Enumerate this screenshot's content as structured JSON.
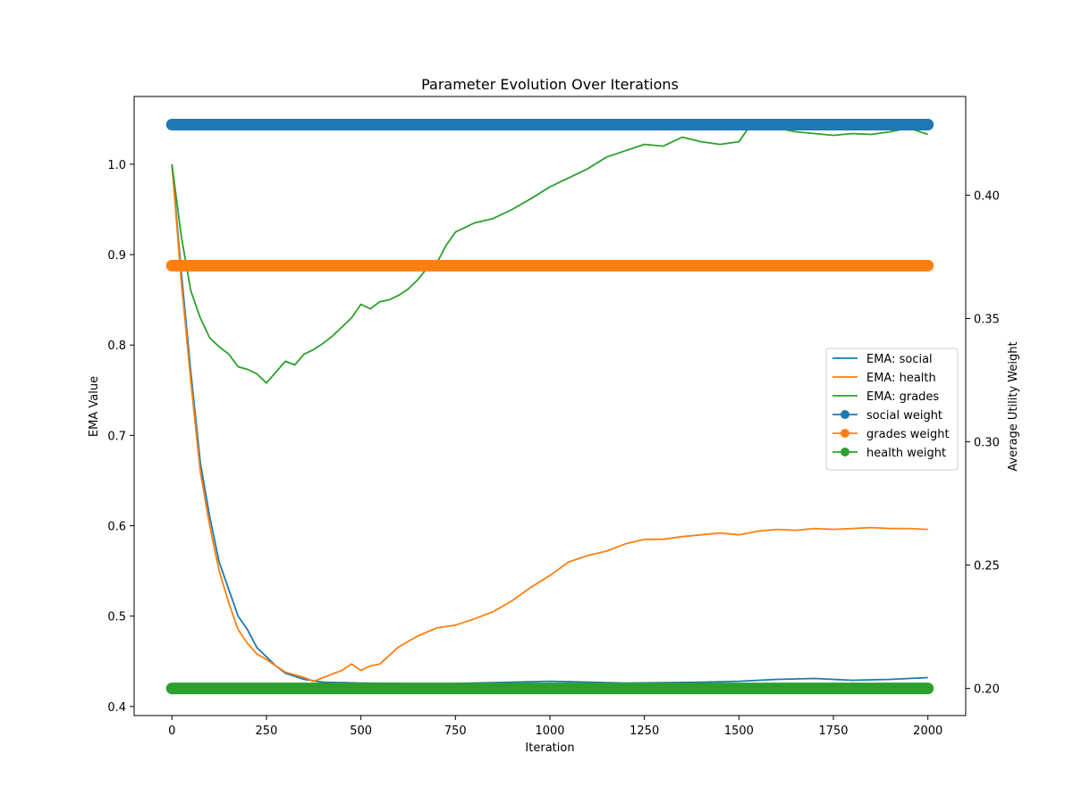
{
  "chart_data": {
    "type": "line",
    "title": "Parameter Evolution Over Iterations",
    "xlabel": "Iteration",
    "ylabel": "EMA Value",
    "y2label": "Average Utility Weight",
    "xlim": [
      -100,
      2100
    ],
    "ylim": [
      0.39,
      1.075
    ],
    "y2lim": [
      0.189,
      0.44
    ],
    "xticks": [
      0,
      250,
      500,
      750,
      1000,
      1250,
      1500,
      1750,
      2000
    ],
    "yticks": [
      0.4,
      0.5,
      0.6,
      0.7,
      0.8,
      0.9,
      1.0
    ],
    "y2ticks": [
      0.2,
      0.25,
      0.3,
      0.35,
      0.4
    ],
    "xtick_labels": [
      "0",
      "250",
      "500",
      "750",
      "1000",
      "1250",
      "1500",
      "1750",
      "2000"
    ],
    "ytick_labels": [
      "0.4",
      "0.5",
      "0.6",
      "0.7",
      "0.8",
      "0.9",
      "1.0"
    ],
    "y2tick_labels": [
      "0.20",
      "0.25",
      "0.30",
      "0.35",
      "0.40"
    ],
    "grid": false,
    "legend_position": "center-right",
    "series": [
      {
        "name": "EMA: social",
        "axis": "left",
        "style": "line",
        "color": "#1f77b4",
        "points": [
          [
            0,
            1.0
          ],
          [
            25,
            0.88
          ],
          [
            50,
            0.77
          ],
          [
            75,
            0.67
          ],
          [
            100,
            0.61
          ],
          [
            125,
            0.56
          ],
          [
            150,
            0.53
          ],
          [
            175,
            0.5
          ],
          [
            200,
            0.485
          ],
          [
            225,
            0.465
          ],
          [
            250,
            0.455
          ],
          [
            275,
            0.445
          ],
          [
            300,
            0.437
          ],
          [
            350,
            0.43
          ],
          [
            400,
            0.427
          ],
          [
            500,
            0.426
          ],
          [
            700,
            0.425
          ],
          [
            900,
            0.427
          ],
          [
            1000,
            0.428
          ],
          [
            1200,
            0.426
          ],
          [
            1400,
            0.427
          ],
          [
            1500,
            0.428
          ],
          [
            1600,
            0.43
          ],
          [
            1700,
            0.431
          ],
          [
            1800,
            0.429
          ],
          [
            1900,
            0.43
          ],
          [
            2000,
            0.432
          ]
        ]
      },
      {
        "name": "EMA: health",
        "axis": "left",
        "style": "line",
        "color": "#ff7f0e",
        "points": [
          [
            0,
            1.0
          ],
          [
            25,
            0.87
          ],
          [
            50,
            0.76
          ],
          [
            75,
            0.66
          ],
          [
            100,
            0.6
          ],
          [
            125,
            0.55
          ],
          [
            150,
            0.515
          ],
          [
            175,
            0.485
          ],
          [
            200,
            0.47
          ],
          [
            225,
            0.458
          ],
          [
            250,
            0.452
          ],
          [
            275,
            0.445
          ],
          [
            300,
            0.438
          ],
          [
            350,
            0.432
          ],
          [
            375,
            0.428
          ],
          [
            400,
            0.432
          ],
          [
            450,
            0.44
          ],
          [
            475,
            0.447
          ],
          [
            500,
            0.44
          ],
          [
            525,
            0.445
          ],
          [
            550,
            0.447
          ],
          [
            600,
            0.466
          ],
          [
            650,
            0.478
          ],
          [
            700,
            0.487
          ],
          [
            750,
            0.49
          ],
          [
            800,
            0.497
          ],
          [
            850,
            0.505
          ],
          [
            900,
            0.517
          ],
          [
            950,
            0.532
          ],
          [
            1000,
            0.545
          ],
          [
            1050,
            0.56
          ],
          [
            1100,
            0.567
          ],
          [
            1150,
            0.572
          ],
          [
            1200,
            0.58
          ],
          [
            1250,
            0.585
          ],
          [
            1300,
            0.585
          ],
          [
            1350,
            0.588
          ],
          [
            1400,
            0.59
          ],
          [
            1450,
            0.592
          ],
          [
            1500,
            0.59
          ],
          [
            1550,
            0.594
          ],
          [
            1600,
            0.596
          ],
          [
            1650,
            0.595
          ],
          [
            1700,
            0.597
          ],
          [
            1750,
            0.596
          ],
          [
            1800,
            0.597
          ],
          [
            1850,
            0.598
          ],
          [
            1900,
            0.597
          ],
          [
            1950,
            0.597
          ],
          [
            2000,
            0.596
          ]
        ]
      },
      {
        "name": "EMA: grades",
        "axis": "left",
        "style": "line",
        "color": "#2ca02c",
        "points": [
          [
            0,
            1.0
          ],
          [
            25,
            0.92
          ],
          [
            50,
            0.86
          ],
          [
            75,
            0.83
          ],
          [
            100,
            0.808
          ],
          [
            125,
            0.798
          ],
          [
            150,
            0.79
          ],
          [
            175,
            0.776
          ],
          [
            200,
            0.773
          ],
          [
            225,
            0.768
          ],
          [
            250,
            0.758
          ],
          [
            275,
            0.77
          ],
          [
            300,
            0.782
          ],
          [
            325,
            0.778
          ],
          [
            350,
            0.79
          ],
          [
            375,
            0.795
          ],
          [
            400,
            0.802
          ],
          [
            425,
            0.81
          ],
          [
            450,
            0.82
          ],
          [
            475,
            0.83
          ],
          [
            500,
            0.845
          ],
          [
            525,
            0.84
          ],
          [
            550,
            0.848
          ],
          [
            575,
            0.85
          ],
          [
            600,
            0.855
          ],
          [
            625,
            0.862
          ],
          [
            650,
            0.872
          ],
          [
            675,
            0.885
          ],
          [
            700,
            0.89
          ],
          [
            725,
            0.91
          ],
          [
            750,
            0.925
          ],
          [
            775,
            0.93
          ],
          [
            800,
            0.935
          ],
          [
            850,
            0.94
          ],
          [
            900,
            0.95
          ],
          [
            950,
            0.962
          ],
          [
            1000,
            0.975
          ],
          [
            1050,
            0.985
          ],
          [
            1100,
            0.995
          ],
          [
            1150,
            1.008
          ],
          [
            1200,
            1.015
          ],
          [
            1250,
            1.022
          ],
          [
            1300,
            1.02
          ],
          [
            1350,
            1.03
          ],
          [
            1400,
            1.025
          ],
          [
            1450,
            1.022
          ],
          [
            1500,
            1.025
          ],
          [
            1525,
            1.04
          ],
          [
            1550,
            1.042
          ],
          [
            1600,
            1.04
          ],
          [
            1650,
            1.036
          ],
          [
            1700,
            1.034
          ],
          [
            1750,
            1.032
          ],
          [
            1800,
            1.034
          ],
          [
            1850,
            1.033
          ],
          [
            1900,
            1.036
          ],
          [
            1950,
            1.04
          ],
          [
            2000,
            1.033
          ]
        ]
      },
      {
        "name": "social weight",
        "axis": "right",
        "style": "marker-line",
        "color": "#1f77b4",
        "x_range": [
          0,
          2000
        ],
        "value": 0.4286
      },
      {
        "name": "grades weight",
        "axis": "right",
        "style": "marker-line",
        "color": "#ff7f0e",
        "x_range": [
          0,
          2000
        ],
        "value": 0.3714
      },
      {
        "name": "health weight",
        "axis": "right",
        "style": "marker-line",
        "color": "#2ca02c",
        "x_range": [
          0,
          2000
        ],
        "value": 0.2
      }
    ]
  }
}
